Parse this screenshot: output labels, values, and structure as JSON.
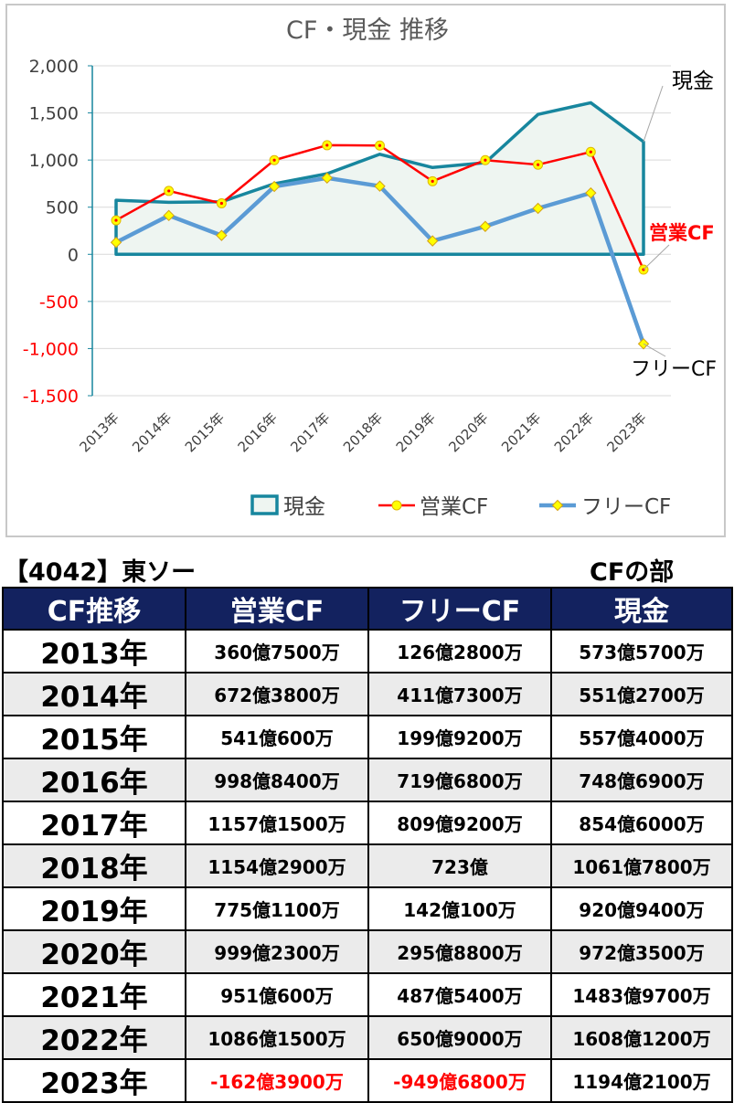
{
  "chart_data": {
    "type": "line",
    "title": "CF・現金 推移",
    "categories": [
      "2013年",
      "2014年",
      "2015年",
      "2016年",
      "2017年",
      "2018年",
      "2019年",
      "2020年",
      "2021年",
      "2022年",
      "2023年"
    ],
    "ylim": [
      -1500,
      2000
    ],
    "yticks": [
      2000,
      1500,
      1000,
      500,
      0,
      -500,
      -1000,
      -1500
    ],
    "ytick_labels": [
      "2,000",
      "1,500",
      "1,000",
      "500",
      "0",
      "-500",
      "-1,000",
      "-1,500"
    ],
    "grid": true,
    "legend_position": "bottom",
    "series": [
      {
        "name": "現金",
        "style": "area",
        "color": "#17869e",
        "fill": "#eef5f1",
        "values": [
          573.57,
          551.27,
          557.4,
          748.69,
          854.6,
          1061.78,
          920.94,
          972.35,
          1483.97,
          1608.12,
          1194.21
        ]
      },
      {
        "name": "営業CF",
        "style": "line",
        "color": "#ff0000",
        "marker_color": "#ffff00",
        "values": [
          360.75,
          672.38,
          541.06,
          998.84,
          1157.15,
          1154.29,
          775.11,
          999.23,
          951.06,
          1086.15,
          -162.39
        ]
      },
      {
        "name": "フリーCF",
        "style": "line",
        "color": "#5b9bd5",
        "marker_color": "#ffff00",
        "values": [
          126.28,
          411.73,
          199.92,
          719.68,
          809.92,
          723.0,
          142.01,
          295.88,
          487.54,
          650.9,
          -949.68
        ]
      }
    ],
    "annotations": [
      {
        "text": "現金",
        "color": "#000000"
      },
      {
        "text": "営業CF",
        "color": "#ff0000"
      },
      {
        "text": "フリーCF",
        "color": "#000000"
      }
    ]
  },
  "header": {
    "left": "【4042】東ソー",
    "right": "CFの部"
  },
  "table": {
    "headers": [
      "CF推移",
      "営業CF",
      "フリーCF",
      "現金"
    ],
    "rows": [
      {
        "year": "2013年",
        "op": "360億7500万",
        "free": "126億2800万",
        "cash": "573億5700万",
        "op_neg": false,
        "free_neg": false
      },
      {
        "year": "2014年",
        "op": "672億3800万",
        "free": "411億7300万",
        "cash": "551億2700万",
        "op_neg": false,
        "free_neg": false
      },
      {
        "year": "2015年",
        "op": "541億600万",
        "free": "199億9200万",
        "cash": "557億4000万",
        "op_neg": false,
        "free_neg": false
      },
      {
        "year": "2016年",
        "op": "998億8400万",
        "free": "719億6800万",
        "cash": "748億6900万",
        "op_neg": false,
        "free_neg": false
      },
      {
        "year": "2017年",
        "op": "1157億1500万",
        "free": "809億9200万",
        "cash": "854億6000万",
        "op_neg": false,
        "free_neg": false
      },
      {
        "year": "2018年",
        "op": "1154億2900万",
        "free": "723億",
        "cash": "1061億7800万",
        "op_neg": false,
        "free_neg": false
      },
      {
        "year": "2019年",
        "op": "775億1100万",
        "free": "142億100万",
        "cash": "920億9400万",
        "op_neg": false,
        "free_neg": false
      },
      {
        "year": "2020年",
        "op": "999億2300万",
        "free": "295億8800万",
        "cash": "972億3500万",
        "op_neg": false,
        "free_neg": false
      },
      {
        "year": "2021年",
        "op": "951億600万",
        "free": "487億5400万",
        "cash": "1483億9700万",
        "op_neg": false,
        "free_neg": false
      },
      {
        "year": "2022年",
        "op": "1086億1500万",
        "free": "650億9000万",
        "cash": "1608億1200万",
        "op_neg": false,
        "free_neg": false
      },
      {
        "year": "2023年",
        "op": "-162億3900万",
        "free": "-949億6800万",
        "cash": "1194億2100万",
        "op_neg": true,
        "free_neg": true
      }
    ]
  }
}
